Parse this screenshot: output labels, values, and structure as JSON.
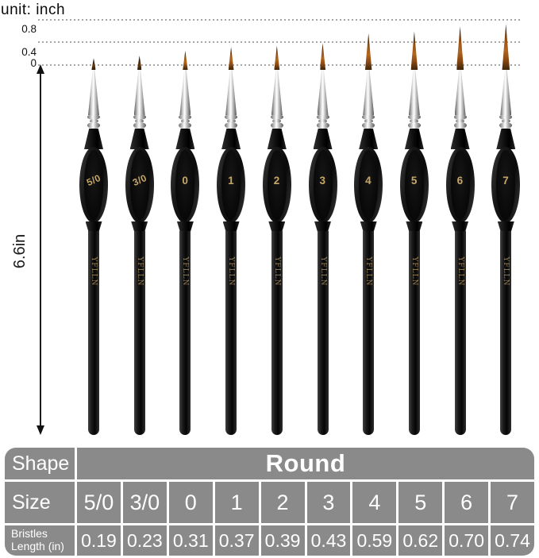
{
  "unit_label": "unit: inch",
  "ruler": {
    "tick_labels": [
      "0.8",
      "0.4",
      "0"
    ]
  },
  "overall_length_label": "6.6in",
  "brand_text": "YFLLN",
  "brushes": [
    {
      "size": "5/0",
      "bristles_in": "0.19"
    },
    {
      "size": "3/0",
      "bristles_in": "0.23"
    },
    {
      "size": "0",
      "bristles_in": "0.31"
    },
    {
      "size": "1",
      "bristles_in": "0.37"
    },
    {
      "size": "2",
      "bristles_in": "0.39"
    },
    {
      "size": "3",
      "bristles_in": "0.43"
    },
    {
      "size": "4",
      "bristles_in": "0.59"
    },
    {
      "size": "5",
      "bristles_in": "0.62"
    },
    {
      "size": "6",
      "bristles_in": "0.70"
    },
    {
      "size": "7",
      "bristles_in": "0.74"
    }
  ],
  "table": {
    "shape_row_label": "Shape",
    "shape_value": "Round",
    "size_row_label": "Size",
    "bristles_row_label_line1": "Bristles",
    "bristles_row_label_line2": "Length (in)"
  },
  "colors": {
    "table_cell_gray": "#8a8a8a",
    "gold_text": "#c6a768",
    "bristle_sienna": "#a85c20",
    "handle_black": "#0a0a0a"
  }
}
